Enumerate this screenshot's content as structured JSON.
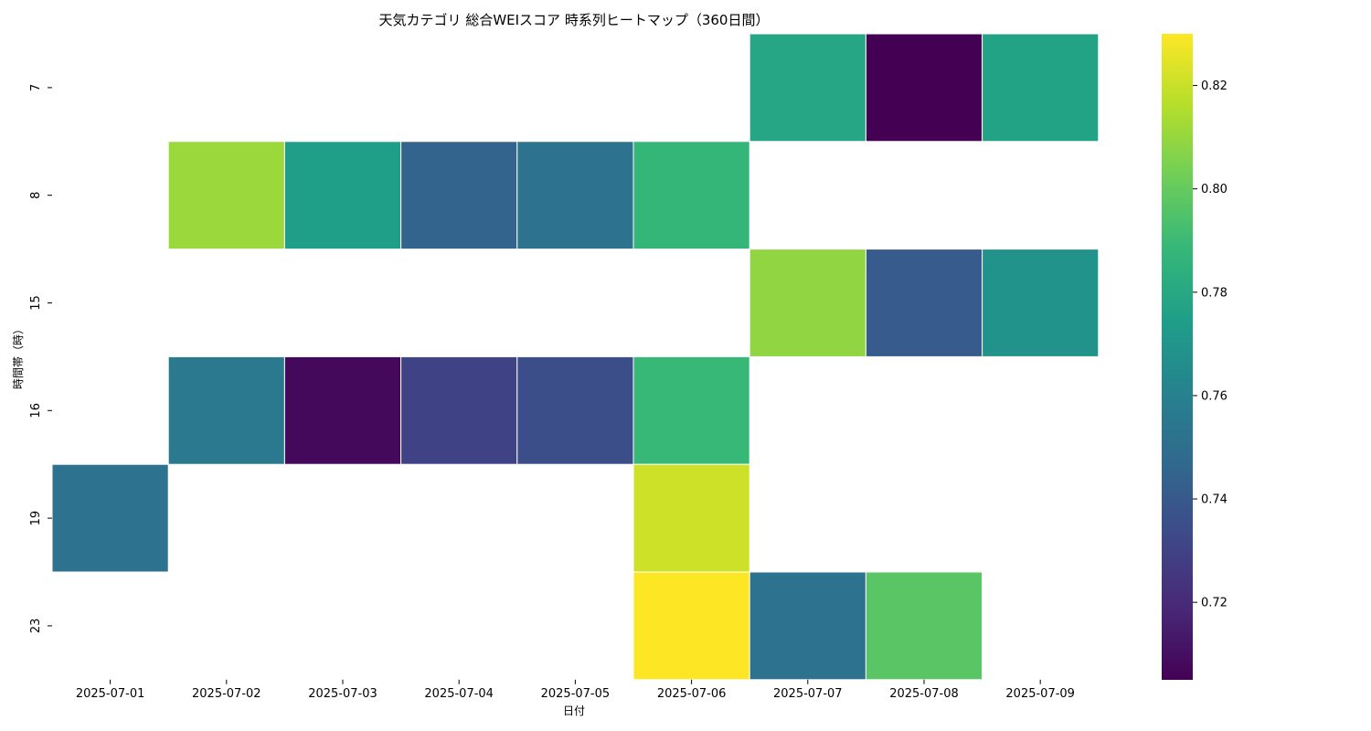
{
  "chart_data": {
    "type": "heatmap",
    "title": "天気カテゴリ 総合WEIスコア 時系列ヒートマップ（360日間）",
    "xlabel": "日付",
    "ylabel": "時間帯（時）",
    "x_categories": [
      "2025-07-01",
      "2025-07-02",
      "2025-07-03",
      "2025-07-04",
      "2025-07-05",
      "2025-07-06",
      "2025-07-07",
      "2025-07-08",
      "2025-07-09"
    ],
    "y_categories": [
      "7",
      "8",
      "15",
      "16",
      "19",
      "23"
    ],
    "values": [
      [
        null,
        null,
        null,
        null,
        null,
        null,
        0.779,
        0.705,
        0.777
      ],
      [
        null,
        0.811,
        0.775,
        0.745,
        0.752,
        0.788,
        null,
        null,
        null
      ],
      [
        null,
        null,
        null,
        null,
        null,
        null,
        0.809,
        0.741,
        0.769
      ],
      [
        null,
        0.756,
        0.708,
        0.73,
        0.735,
        0.789,
        null,
        null,
        null
      ],
      [
        0.752,
        null,
        null,
        null,
        null,
        0.821,
        null,
        null,
        null
      ],
      [
        null,
        null,
        null,
        null,
        null,
        0.83,
        0.752,
        0.797,
        null
      ]
    ],
    "colormap": "viridis",
    "vmin": 0.705,
    "vmax": 0.83,
    "colorbar_ticks": [
      "0.72",
      "0.74",
      "0.76",
      "0.78",
      "0.80",
      "0.82"
    ],
    "missing_color": "#ffffff",
    "cell_border_color": "#ffffff"
  }
}
